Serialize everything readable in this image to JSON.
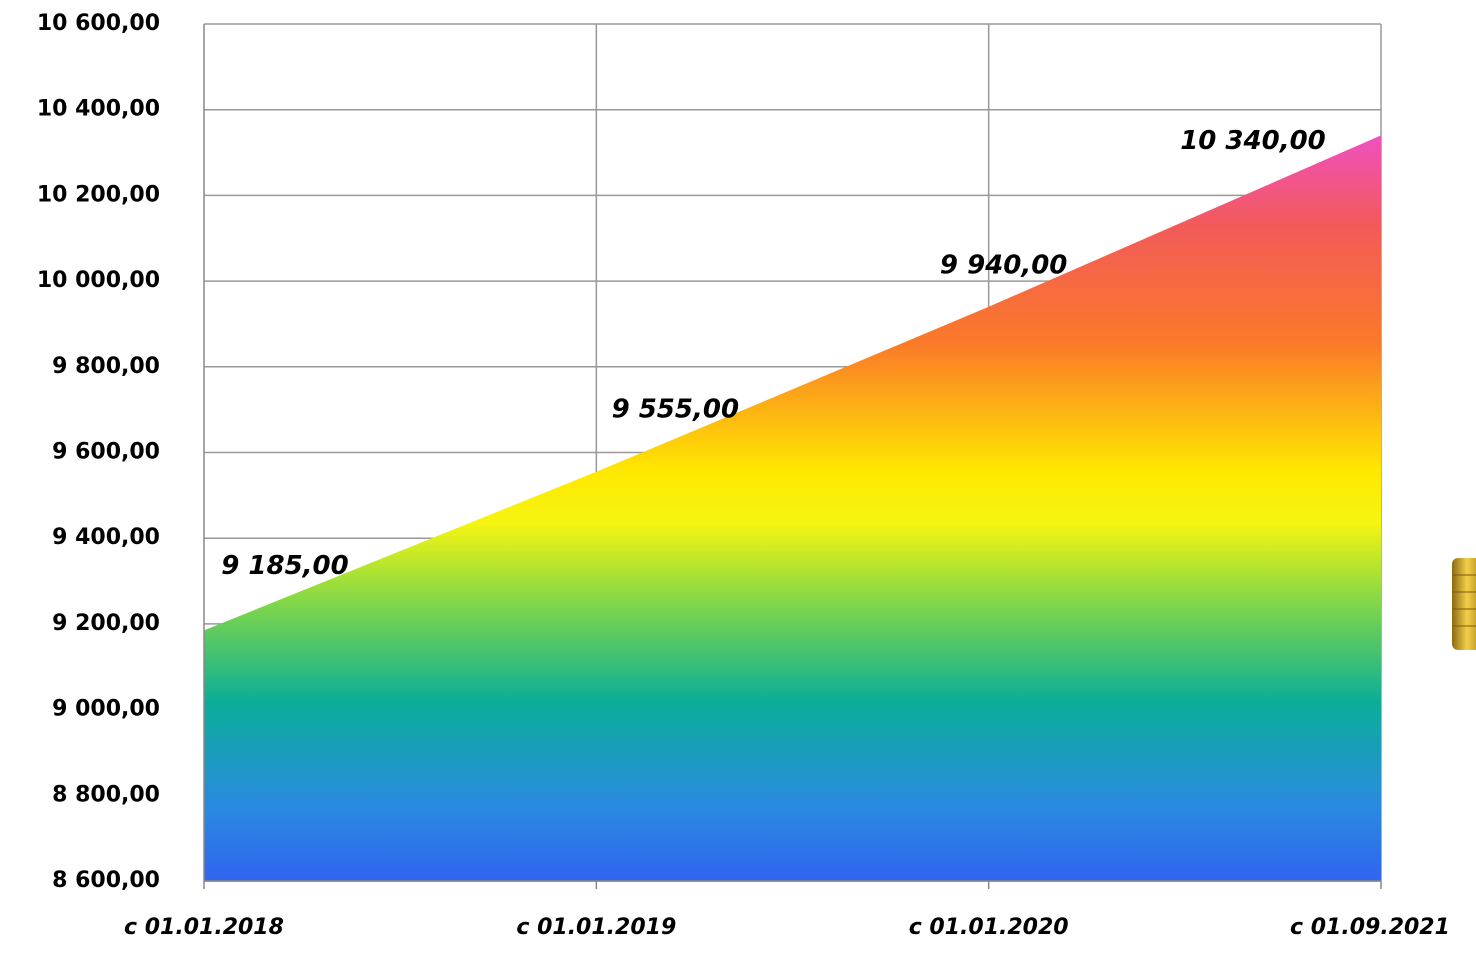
{
  "chart_data": {
    "type": "area",
    "categories": [
      "с 01.01.2018",
      "с 01.01.2019",
      "с 01.01.2020",
      "с 01.09.2021"
    ],
    "values": [
      9185,
      9555,
      9940,
      10340
    ],
    "value_labels": [
      "9 185,00",
      "9 555,00",
      "9 940,00",
      "10 340,00"
    ],
    "ylim": [
      8600,
      10600
    ],
    "yticks": [
      {
        "value": 8600,
        "label": "8 600,00"
      },
      {
        "value": 8800,
        "label": "8 800,00"
      },
      {
        "value": 9000,
        "label": "9 000,00"
      },
      {
        "value": 9200,
        "label": "9 200,00"
      },
      {
        "value": 9400,
        "label": "9 400,00"
      },
      {
        "value": 9600,
        "label": "9 600,00"
      },
      {
        "value": 9800,
        "label": "9 800,00"
      },
      {
        "value": 10000,
        "label": "10 000,00"
      },
      {
        "value": 10200,
        "label": "10 200,00"
      },
      {
        "value": 10400,
        "label": "10 400,00"
      },
      {
        "value": 10600,
        "label": "10 600,00"
      }
    ],
    "grid": true
  }
}
